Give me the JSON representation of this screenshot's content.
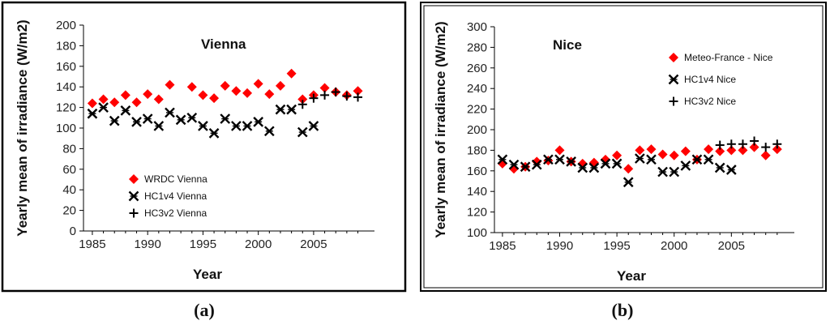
{
  "captions": [
    "(a)",
    "(b)"
  ],
  "chart_data": [
    {
      "type": "scatter",
      "title": "Vienna",
      "xlabel": "Year",
      "ylabel": "Yearly mean of irradiance (W/m2)",
      "xlim": [
        1985,
        2009
      ],
      "ylim": [
        0,
        200
      ],
      "xticks": [
        1985,
        1990,
        1995,
        2000,
        2005
      ],
      "yticks": [
        0,
        20,
        40,
        60,
        80,
        100,
        120,
        140,
        160,
        180,
        200
      ],
      "grid": false,
      "legend_position": "bottom-left",
      "series": [
        {
          "name": "WRDC Vienna",
          "marker": "diamond",
          "color": "#ff0000",
          "x": [
            1985,
            1986,
            1987,
            1988,
            1989,
            1990,
            1991,
            1992,
            1994,
            1995,
            1996,
            1997,
            1998,
            1999,
            2000,
            2001,
            2002,
            2003,
            2004,
            2005,
            2006,
            2007,
            2008,
            2009
          ],
          "y": [
            124,
            128,
            125,
            132,
            125,
            133,
            128,
            142,
            140,
            132,
            129,
            141,
            136,
            134,
            143,
            133,
            141,
            153,
            128,
            132,
            139,
            135,
            132,
            136
          ]
        },
        {
          "name": "HC1v4 Vienna",
          "marker": "asterisk-x",
          "color": "#000000",
          "x": [
            1985,
            1986,
            1987,
            1988,
            1989,
            1990,
            1991,
            1992,
            1993,
            1994,
            1995,
            1996,
            1997,
            1998,
            1999,
            2000,
            2001,
            2002,
            2003,
            2004,
            2005
          ],
          "y": [
            114,
            120,
            107,
            117,
            106,
            109,
            102,
            115,
            108,
            110,
            102,
            95,
            109,
            102,
            102,
            106,
            97,
            118,
            118,
            96,
            102
          ]
        },
        {
          "name": "HC3v2 Vienna",
          "marker": "plus",
          "color": "#000000",
          "x": [
            2004,
            2005,
            2006,
            2007,
            2008,
            2009
          ],
          "y": [
            123,
            129,
            132,
            135,
            131,
            130
          ]
        }
      ]
    },
    {
      "type": "scatter",
      "title": "Nice",
      "xlabel": "Year",
      "ylabel": "Yearly mean of irradiance (W/m2)",
      "xlim": [
        1985,
        2009
      ],
      "ylim": [
        100,
        300
      ],
      "xticks": [
        1985,
        1990,
        1995,
        2000,
        2005
      ],
      "yticks": [
        100,
        120,
        140,
        160,
        180,
        200,
        220,
        240,
        260,
        280,
        300
      ],
      "grid": false,
      "legend_position": "top-right",
      "series": [
        {
          "name": "Meteo-France - Nice",
          "marker": "diamond",
          "color": "#ff0000",
          "x": [
            1985,
            1986,
            1987,
            1988,
            1989,
            1990,
            1991,
            1992,
            1993,
            1994,
            1995,
            1996,
            1997,
            1998,
            1999,
            2000,
            2001,
            2002,
            2003,
            2004,
            2005,
            2006,
            2007,
            2008,
            2009
          ],
          "y": [
            167,
            162,
            164,
            169,
            170,
            180,
            169,
            167,
            168,
            171,
            175,
            162,
            180,
            181,
            176,
            175,
            179,
            171,
            181,
            179,
            180,
            180,
            183,
            175,
            181
          ]
        },
        {
          "name": "HC1v4 Nice",
          "marker": "asterisk-x",
          "color": "#000000",
          "x": [
            1985,
            1986,
            1987,
            1988,
            1989,
            1990,
            1991,
            1992,
            1993,
            1994,
            1995,
            1996,
            1997,
            1998,
            1999,
            2000,
            2001,
            2002,
            2003,
            2004,
            2005
          ],
          "y": [
            171,
            166,
            164,
            166,
            171,
            171,
            169,
            163,
            163,
            167,
            167,
            149,
            172,
            171,
            159,
            159,
            165,
            171,
            171,
            163,
            161
          ]
        },
        {
          "name": "HC3v2 Nice",
          "marker": "plus",
          "color": "#000000",
          "x": [
            2004,
            2005,
            2006,
            2007,
            2008,
            2009
          ],
          "y": [
            185,
            186,
            186,
            189,
            183,
            186
          ]
        }
      ]
    }
  ]
}
